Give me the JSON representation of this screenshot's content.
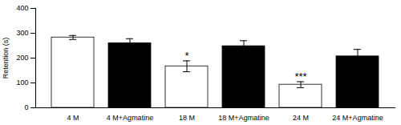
{
  "chart_data": {
    "type": "bar",
    "categories": [
      "4 M",
      "4 M+Agmatine",
      "18 M",
      "18 M+Agmatine",
      "24 M",
      "24 M+Agmatine"
    ],
    "values": [
      283,
      260,
      167,
      248,
      93,
      207
    ],
    "errors": [
      8,
      18,
      22,
      22,
      12,
      28
    ],
    "colors": [
      "white",
      "black",
      "white",
      "black",
      "white",
      "black"
    ],
    "annotations": [
      {
        "category": "18 M",
        "text": "*"
      },
      {
        "category": "24 M",
        "text": "***"
      }
    ],
    "ylabel": "Retention (s)",
    "ylim": [
      0,
      400
    ],
    "yticks": [
      0,
      100,
      200,
      300,
      400
    ],
    "grid": false
  }
}
